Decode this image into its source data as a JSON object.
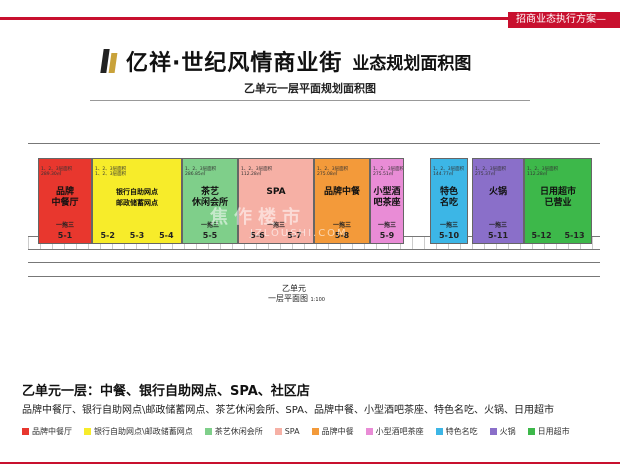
{
  "header": {
    "tag": "招商业态执行方案—"
  },
  "brand": {
    "name": "亿祥·世纪风情商业街",
    "subtitle": "业态规划面积图"
  },
  "plan_title": "乙单元一层平面规划面积图",
  "floor_caption": {
    "line1": "乙单元",
    "line2": "一层平面图",
    "scale": "1:100"
  },
  "watermark": {
    "main": "焦作楼市",
    "sub": "JZLOUSHI.COM"
  },
  "colors": {
    "red": "#e8372e",
    "yellow": "#f7ec2a",
    "green": "#7fcf8a",
    "pink": "#f6b0a5",
    "orange": "#f39a3a",
    "magenta": "#e98cd6",
    "blue": "#3cb6e6",
    "purple": "#8a6fc9",
    "lime": "#3db84a"
  },
  "units": [
    {
      "name": "品牌\n中餐厅",
      "tier": "一拖三",
      "ids": [
        "5-1"
      ],
      "color": "red",
      "info": "1、2、3层面积\n289.30㎡"
    },
    {
      "name": "银行自助网点\n邮政储蓄网点",
      "tier": "",
      "ids": [
        "5-2",
        "5-3",
        "5-4"
      ],
      "color": "yellow",
      "info": "1、2、3层面积\n1、2、3层面积"
    },
    {
      "name": "茶艺\n休闲会所",
      "tier": "一拖三",
      "ids": [
        "5-5"
      ],
      "color": "green",
      "info": "1、2、3层面积\n286.85㎡"
    },
    {
      "name": "SPA",
      "tier": "一拖三",
      "ids": [
        "5-6",
        "5-7"
      ],
      "color": "pink",
      "info": "1、2、3层面积\n112.28㎡"
    },
    {
      "name": "品牌中餐",
      "tier": "一拖三",
      "ids": [
        "5-8"
      ],
      "color": "orange",
      "info": "1、2、3层面积\n275.08㎡"
    },
    {
      "name": "小型酒\n吧茶座",
      "tier": "一拖三",
      "ids": [
        "5-9"
      ],
      "color": "magenta",
      "info": "1、2、3层面积\n275.51㎡"
    },
    {
      "name": "特色\n名吃",
      "tier": "一拖三",
      "ids": [
        "5-10"
      ],
      "color": "blue",
      "info": "1、2、3层面积\n144.77㎡"
    },
    {
      "name": "火锅",
      "tier": "一拖三",
      "ids": [
        "5-11"
      ],
      "color": "purple",
      "info": "1、2、3层面积\n275.37㎡"
    },
    {
      "name": "日用超市\n已营业",
      "tier": "",
      "ids": [
        "5-12",
        "5-13"
      ],
      "color": "lime",
      "info": "1、2、3层面积\n112.28㎡"
    }
  ],
  "summary": {
    "title": "乙单元一层：中餐、银行自助网点、SPA、社区店",
    "list": "品牌中餐厅、银行自助网点\\邮政储蓄网点、茶艺休闲会所、SPA、品牌中餐、小型酒吧茶座、特色名吃、火锅、日用超市"
  },
  "legend": [
    {
      "label": "品牌中餐厅",
      "color": "red"
    },
    {
      "label": "银行自助网点\\邮政储蓄网点",
      "color": "yellow"
    },
    {
      "label": "茶艺休闲会所",
      "color": "green"
    },
    {
      "label": "SPA",
      "color": "pink"
    },
    {
      "label": "品牌中餐",
      "color": "orange"
    },
    {
      "label": "小型酒吧茶座",
      "color": "magenta"
    },
    {
      "label": "特色名吃",
      "color": "blue"
    },
    {
      "label": "火锅",
      "color": "purple"
    },
    {
      "label": "日用超市",
      "color": "lime"
    }
  ]
}
